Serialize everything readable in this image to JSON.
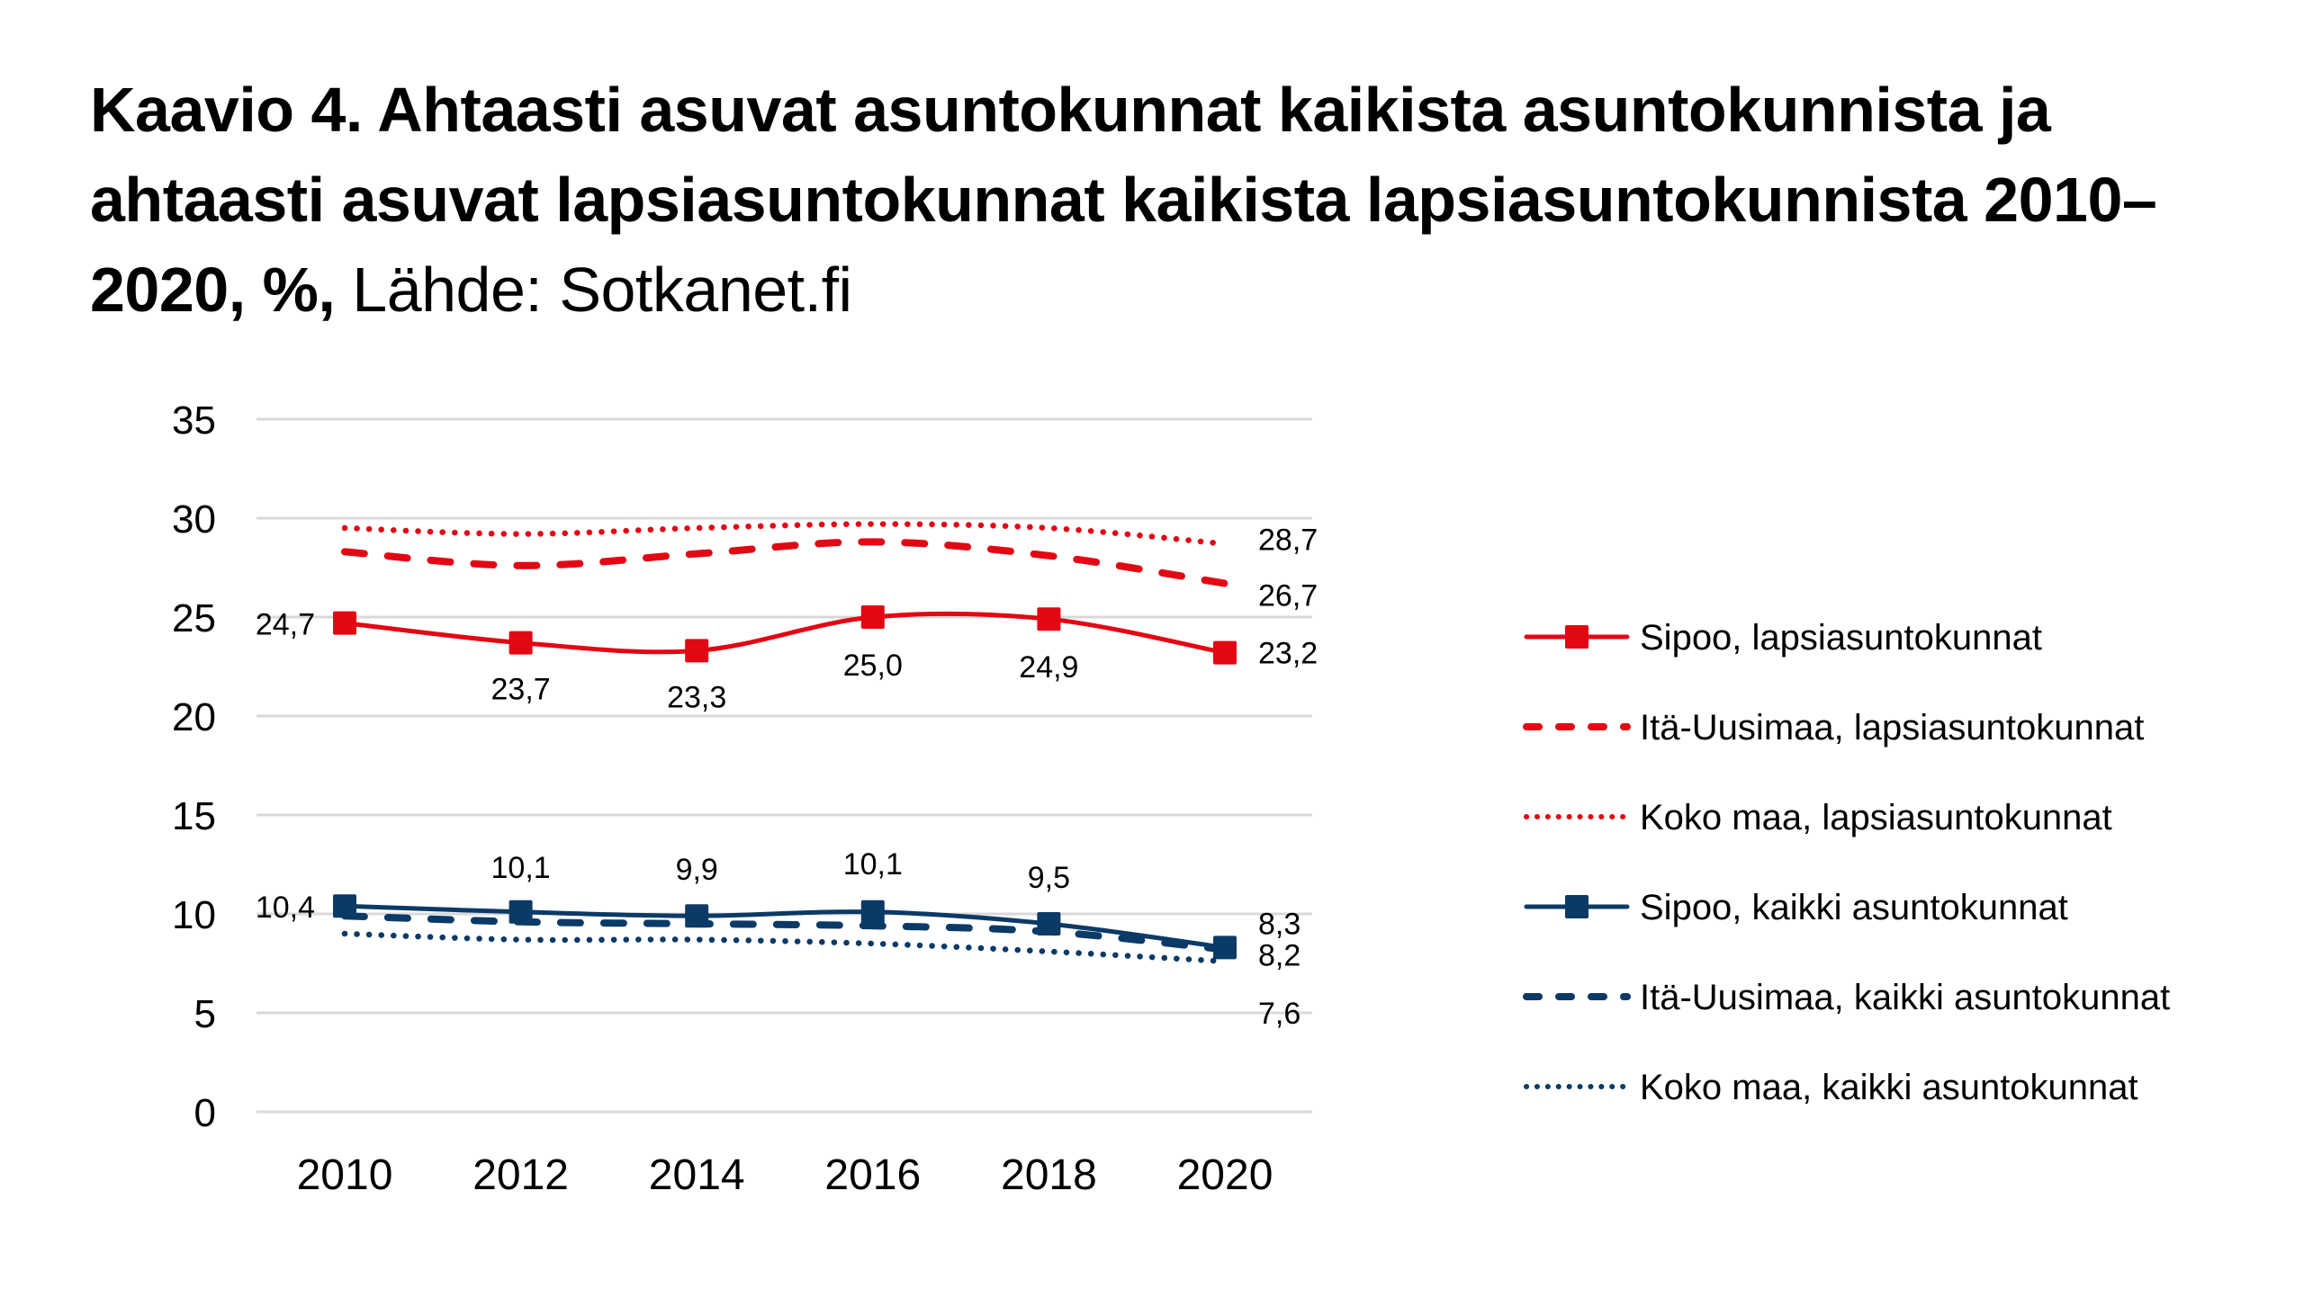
{
  "title": {
    "line_bold": "Kaavio 4. Ahtaasti asuvat asuntokunnat kaikista asuntokunnista ja ahtaasti asuvat lapsiasuntokunnat kaikista lapsiasuntokunnista 2010–2020, %,",
    "source": "Lähde: Sotkanet.fi"
  },
  "colors": {
    "red": "#E30613",
    "navy": "#0B3A66",
    "grid": "#D9D9D9"
  },
  "chart_data": {
    "type": "line",
    "title": "Kaavio 4. Ahtaasti asuvat asuntokunnat kaikista asuntokunnista ja ahtaasti asuvat lapsiasuntokunnat kaikista lapsiasuntokunnista 2010–2020, %, Lähde: Sotkanet.fi",
    "xlabel": "",
    "ylabel": "",
    "x": [
      "2010",
      "2012",
      "2014",
      "2016",
      "2018",
      "2020"
    ],
    "ylim": [
      0,
      35
    ],
    "yticks": [
      "0",
      "5",
      "10",
      "15",
      "20",
      "25",
      "30",
      "35"
    ],
    "ytick_values": [
      0,
      5,
      10,
      15,
      20,
      25,
      30,
      35
    ],
    "grid": true,
    "legend_position": "right",
    "series": [
      {
        "name": "Sipoo, lapsiasuntokunnat",
        "color": "red",
        "style": "solid",
        "marker": "square",
        "values": [
          24.7,
          23.7,
          23.3,
          25.0,
          24.9,
          23.2
        ],
        "labels": [
          "24,7",
          "23,7",
          "23,3",
          "25,0",
          "24,9",
          "23,2"
        ]
      },
      {
        "name": "Itä-Uusimaa, lapsiasuntokunnat",
        "color": "red",
        "style": "dashed",
        "marker": "none",
        "values": [
          28.3,
          27.6,
          28.2,
          28.8,
          28.1,
          26.7
        ],
        "labels": [
          null,
          null,
          null,
          null,
          null,
          "26,7"
        ]
      },
      {
        "name": "Koko maa, lapsiasuntokunnat",
        "color": "red",
        "style": "dotted",
        "marker": "none",
        "values": [
          29.5,
          29.2,
          29.5,
          29.7,
          29.5,
          28.7
        ],
        "labels": [
          null,
          null,
          null,
          null,
          null,
          "28,7"
        ]
      },
      {
        "name": "Sipoo, kaikki asuntokunnat",
        "color": "navy",
        "style": "solid",
        "marker": "square",
        "values": [
          10.4,
          10.1,
          9.9,
          10.1,
          9.5,
          8.3
        ],
        "labels": [
          "10,4",
          "10,1",
          "9,9",
          "10,1",
          "9,5",
          "8,3"
        ]
      },
      {
        "name": "Itä-Uusimaa, kaikki asuntokunnat",
        "color": "navy",
        "style": "dashed",
        "marker": "none",
        "values": [
          9.9,
          9.6,
          9.5,
          9.4,
          9.1,
          8.2
        ],
        "labels": [
          null,
          null,
          null,
          null,
          null,
          "8,2"
        ]
      },
      {
        "name": "Koko maa, kaikki asuntokunnat",
        "color": "navy",
        "style": "dotted",
        "marker": "none",
        "values": [
          9.0,
          8.7,
          8.7,
          8.5,
          8.1,
          7.6
        ],
        "labels": [
          null,
          null,
          null,
          null,
          null,
          "7,6"
        ]
      }
    ]
  }
}
